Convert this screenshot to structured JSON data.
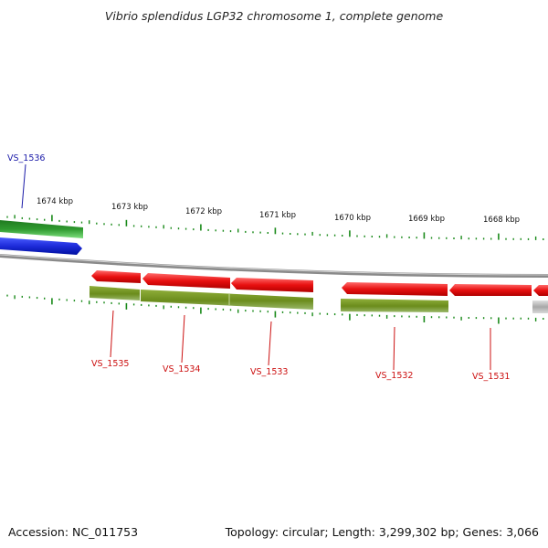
{
  "title": "Vibrio splendidus LGP32 chromosome 1, complete genome",
  "footer": {
    "accession": "Accession: NC_011753",
    "summary": "Topology: circular; Length: 3,299,302 bp; Genes: 3,066"
  },
  "colors": {
    "forward_gene": "#1d2bd9",
    "forward_cds": "#3cae3c",
    "reverse_gene": "#e81010",
    "reverse_cds": "#6b8c1c",
    "backbone": "#8a8a8a",
    "tick": "#1a8a1a",
    "label_forward": "#1a1aa8",
    "label_reverse": "#cc1010",
    "scale_text": "#111111"
  },
  "scale_labels": [
    "1674 kbp",
    "1673 kbp",
    "1672 kbp",
    "1671 kbp",
    "1670 kbp",
    "1669 kbp",
    "1668 kbp"
  ],
  "genes": [
    {
      "locus": "VS_1536",
      "strand": "forward"
    },
    {
      "locus": "VS_1535",
      "strand": "reverse"
    },
    {
      "locus": "VS_1534",
      "strand": "reverse"
    },
    {
      "locus": "VS_1533",
      "strand": "reverse"
    },
    {
      "locus": "VS_1532",
      "strand": "reverse"
    },
    {
      "locus": "VS_1531",
      "strand": "reverse"
    }
  ]
}
